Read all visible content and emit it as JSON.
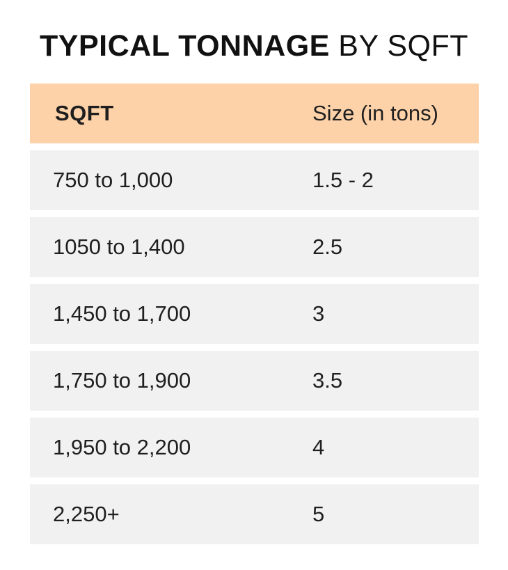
{
  "title": {
    "bold": "TYPICAL TONNAGE",
    "light": "BY SQFT"
  },
  "table": {
    "headers": [
      "SQFT",
      "Size (in tons)"
    ],
    "rows": [
      [
        "750 to 1,000",
        "1.5 - 2"
      ],
      [
        "1050 to 1,400",
        "2.5"
      ],
      [
        "1,450 to 1,700",
        "3"
      ],
      [
        "1,750 to 1,900",
        "3.5"
      ],
      [
        "1,950 to 2,200",
        "4"
      ],
      [
        "2,250+",
        "5"
      ]
    ]
  },
  "colors": {
    "header_background": "#fdd2a8",
    "row_background": "#f1f1f1"
  }
}
